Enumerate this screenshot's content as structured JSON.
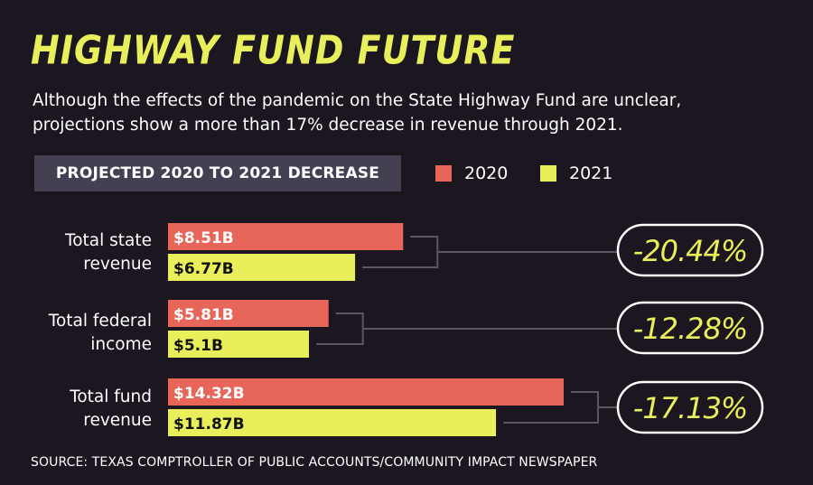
{
  "header": {
    "title": "HIGHWAY FUND FUTURE",
    "subtitle": "Although the effects of the pandemic on the State Highway Fund are unclear, projections show a more than 17% decrease in revenue through 2021.",
    "section_label": "PROJECTED 2020 TO 2021 DECREASE"
  },
  "legend": [
    {
      "label": "2020",
      "color": "#e8655a"
    },
    {
      "label": "2021",
      "color": "#e9ef5a"
    }
  ],
  "chart_data": {
    "type": "bar",
    "orientation": "horizontal",
    "title": "HIGHWAY FUND FUTURE",
    "categories": [
      "Total state revenue",
      "Total federal income",
      "Total fund revenue"
    ],
    "category_lines": [
      [
        "Total state",
        "revenue"
      ],
      [
        "Total federal",
        "income"
      ],
      [
        "Total fund",
        "revenue"
      ]
    ],
    "series": [
      {
        "name": "2020",
        "color": "#e8655a",
        "values": [
          8.51,
          5.81,
          14.32
        ],
        "labels": [
          "$8.51B",
          "$5.81B",
          "$14.32B"
        ]
      },
      {
        "name": "2021",
        "color": "#e9ef5a",
        "values": [
          6.77,
          5.1,
          11.87
        ],
        "labels": [
          "$6.77B",
          "$5.1B",
          "$11.87B"
        ]
      }
    ],
    "changes": [
      "-20.44%",
      "-12.28%",
      "-17.13%"
    ],
    "unit": "billions of dollars",
    "xlim": [
      0,
      14.32
    ],
    "grid": false,
    "legend_position": "top-right"
  },
  "source": "SOURCE: TEXAS COMPTROLLER OF PUBLIC ACCOUNTS/COMMUNITY IMPACT NEWSPAPER"
}
